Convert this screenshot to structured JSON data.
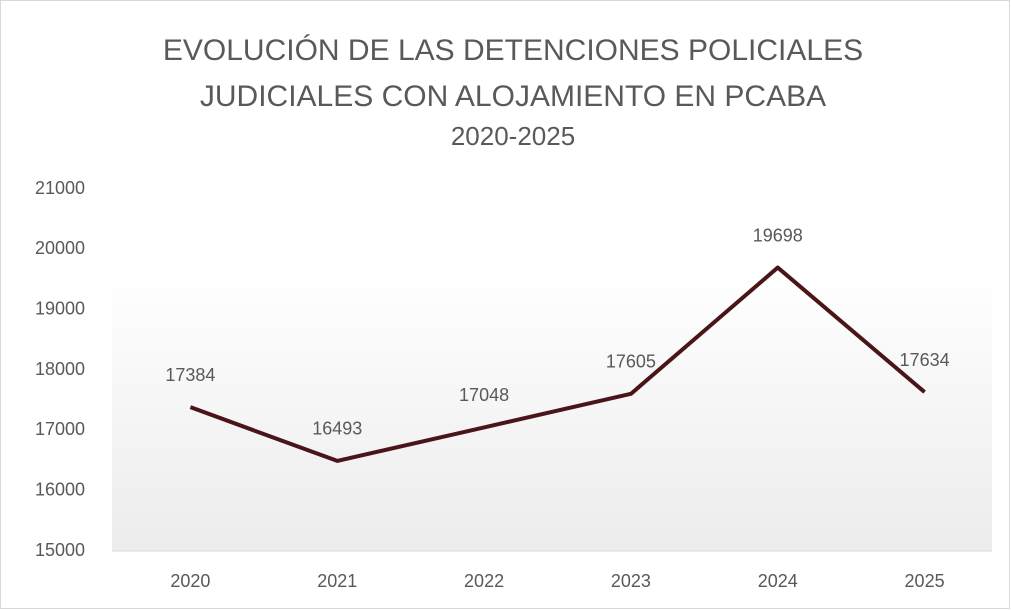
{
  "chart_data": {
    "type": "line",
    "title": [
      "EVOLUCIÓN DE LAS DETENCIONES POLICIALES",
      "JUDICIALES CON ALOJAMIENTO EN PCABA"
    ],
    "subtitle": "2020-2025",
    "categories": [
      "2020",
      "2021",
      "2022",
      "2023",
      "2024",
      "2025"
    ],
    "values": [
      17384,
      16493,
      17048,
      17605,
      19698,
      17634
    ],
    "color": "#4a1518",
    "ylim": [
      15000,
      21000
    ],
    "yticks": [
      15000,
      16000,
      17000,
      18000,
      19000,
      20000,
      21000
    ],
    "grid": false
  }
}
